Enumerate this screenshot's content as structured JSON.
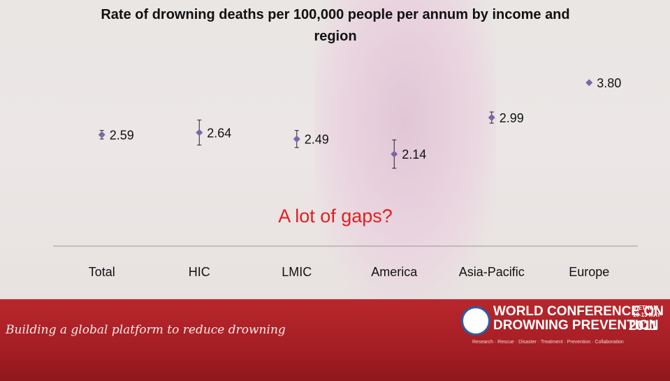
{
  "chart_data": {
    "type": "errorbar",
    "title": "Rate of drowning deaths per 100,000 people per annum by income and region",
    "categories": [
      "Total",
      "HIC",
      "LMIC",
      "America",
      "Asia-Pacific",
      "Europe"
    ],
    "values": [
      2.59,
      2.64,
      2.49,
      2.14,
      2.99,
      3.8
    ],
    "value_labels": [
      "2.59",
      "2.64",
      "2.49",
      "2.14",
      "2.99",
      "3.80"
    ],
    "errors": [
      0.1,
      0.29,
      0.2,
      0.33,
      0.13,
      null
    ],
    "color": "#7a68a6",
    "ylim": [
      0,
      4
    ],
    "annotation": "A lot of gaps?"
  },
  "footer": {
    "slogan": "Building a global platform to reduce drowning",
    "conference_line1": "WORLD CONFERENCE ON",
    "conference_line2": "DROWNING PREVENTION",
    "country": "VIETNAM",
    "dates": "10-13 MAY",
    "year": "2011",
    "tagline": "Research · Rescue · Disaster · Treatment · Prevention · Collaboration"
  }
}
